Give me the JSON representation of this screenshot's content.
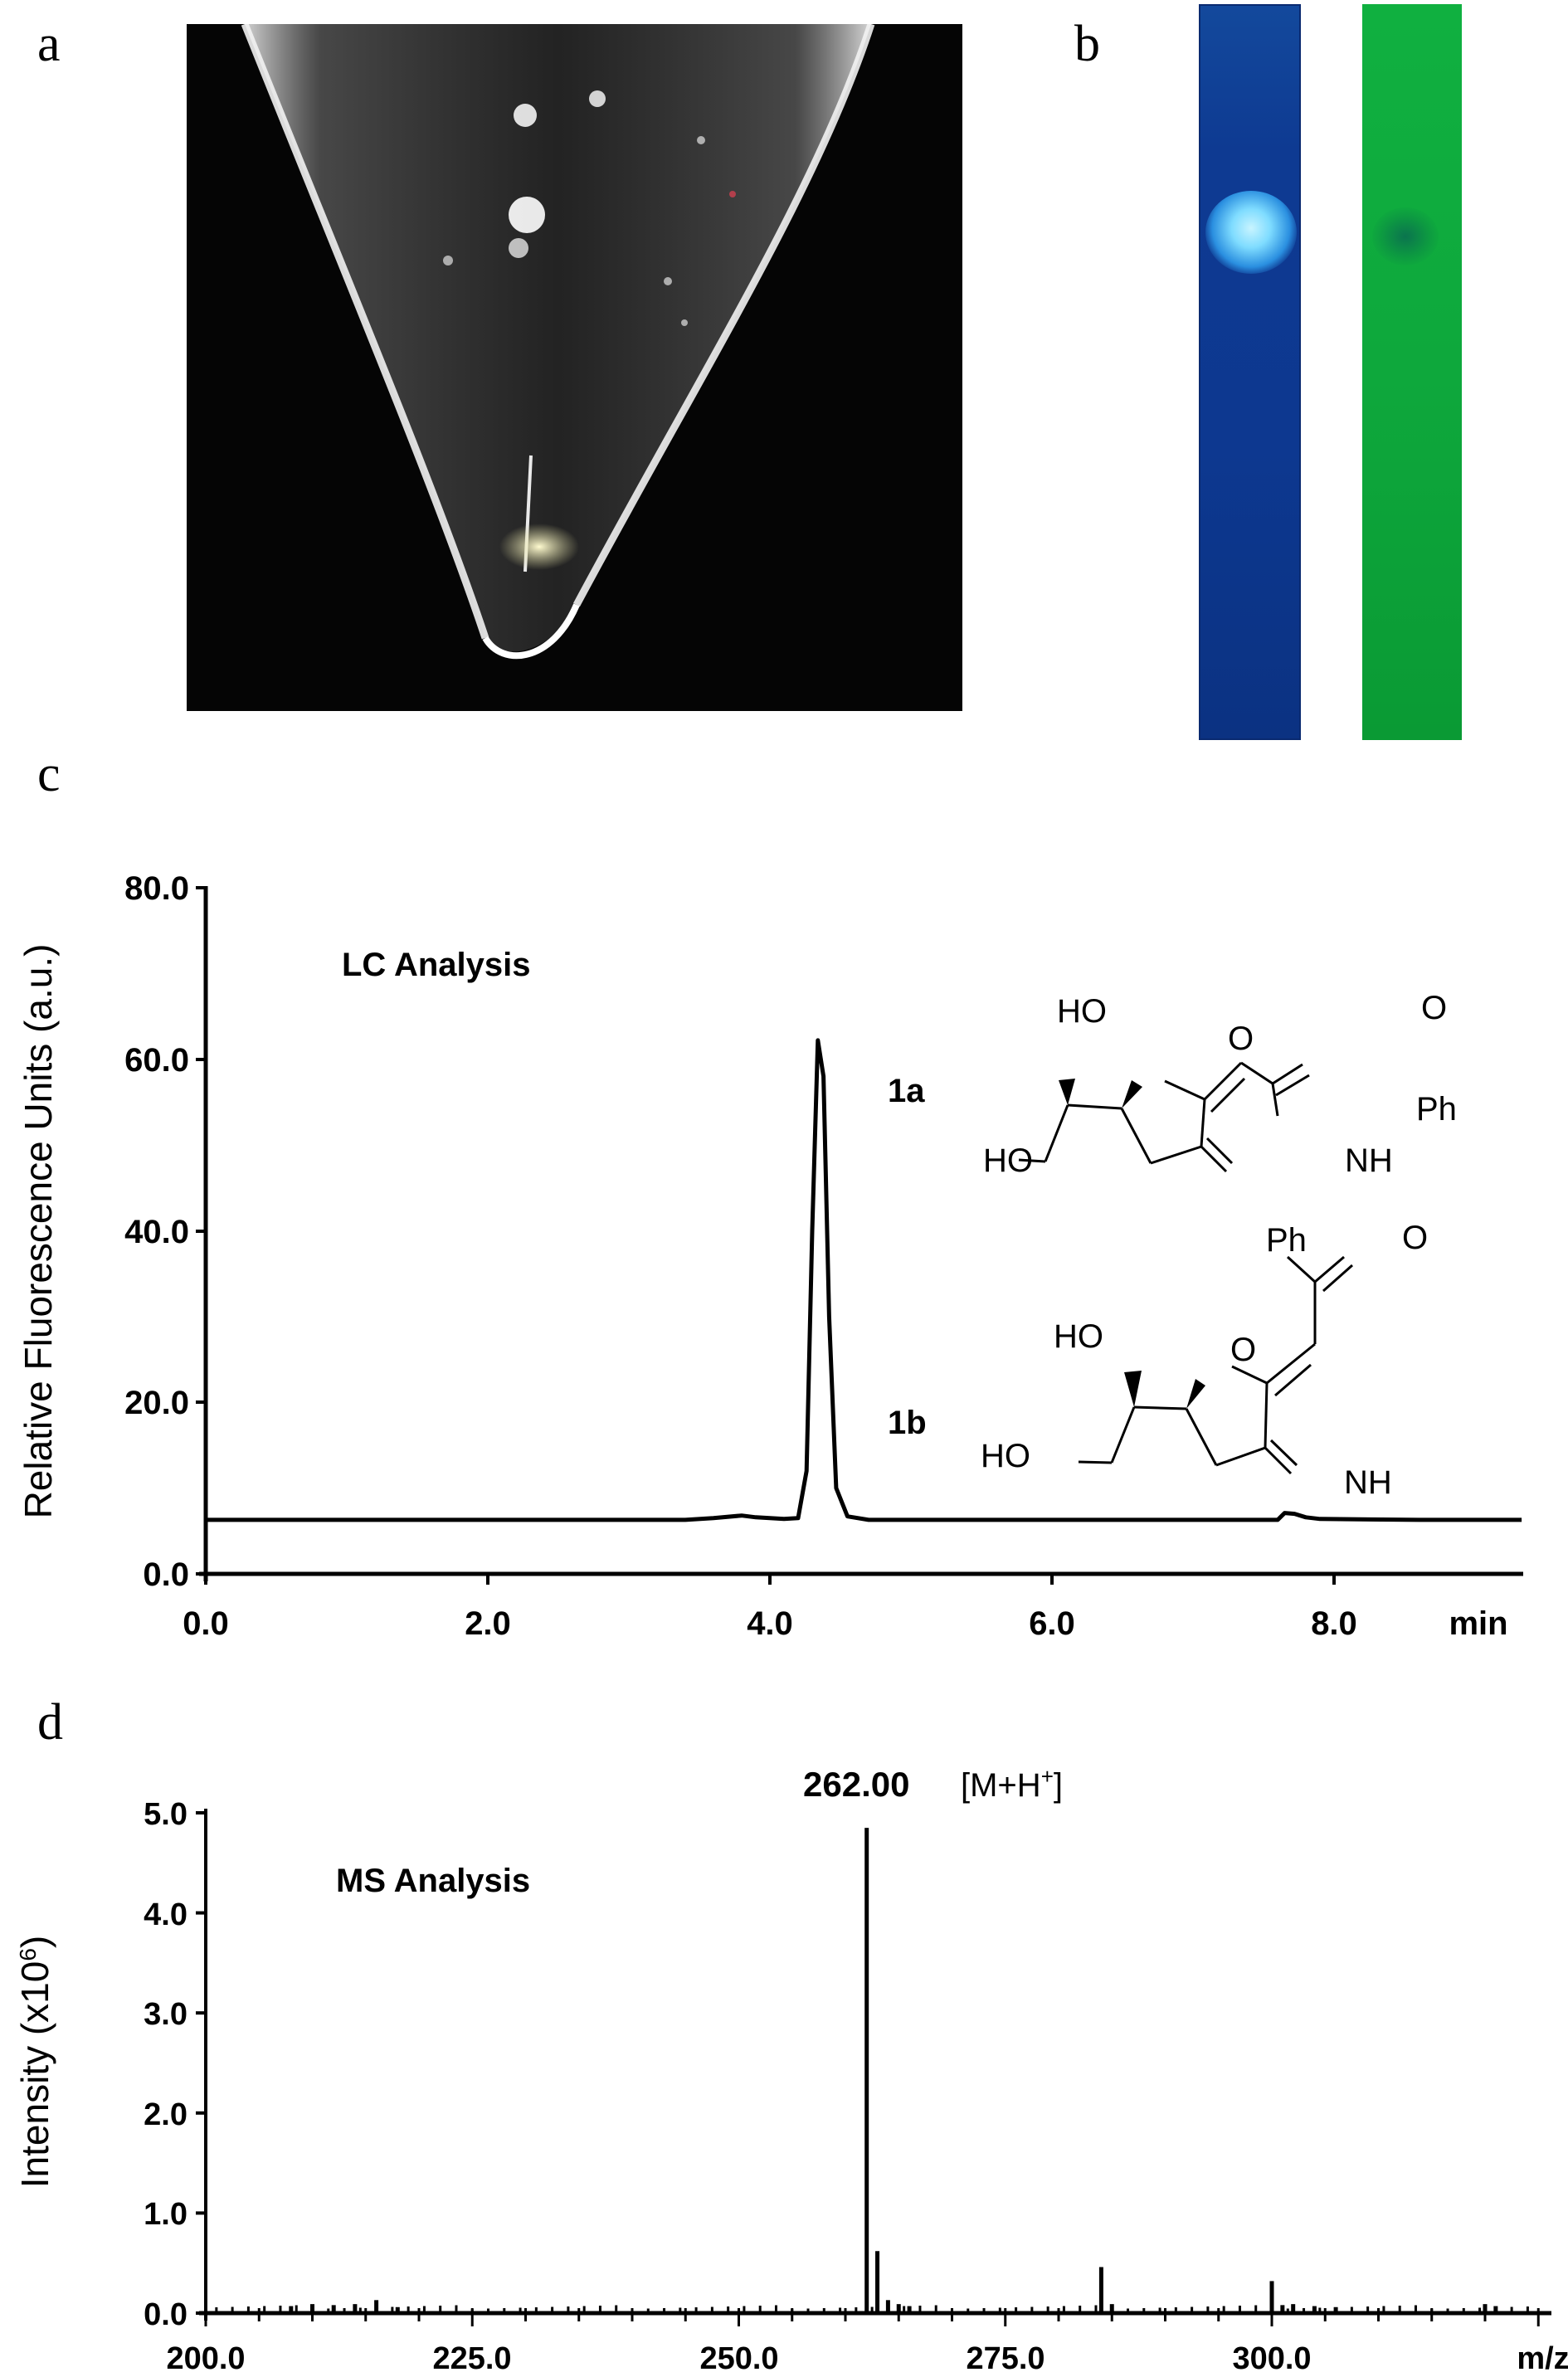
{
  "panels": {
    "a": {
      "label": "a",
      "description": "Conical vial with pale yellow precipitate"
    },
    "b": {
      "label": "b",
      "strips": [
        {
          "name": "uv365",
          "color": "#0a3a9a",
          "spot_color": "#8fe6ff"
        },
        {
          "name": "uv254",
          "color": "#12b03c",
          "spot_color": "#0f8a4a"
        }
      ]
    },
    "c": {
      "label": "c",
      "annotation": "LC Analysis",
      "compound_labels": [
        "1a",
        "1b"
      ]
    },
    "d": {
      "label": "d",
      "annotation": "MS Analysis",
      "peak_label_value": "262.00",
      "peak_label_ion": "[M+H",
      "peak_label_sup": "+",
      "peak_label_close": "]"
    }
  },
  "structures": {
    "atoms": {
      "ho": "HO",
      "o": "O",
      "ph": "Ph",
      "nh": "NH"
    }
  },
  "chart_data": [
    {
      "id": "c",
      "type": "line",
      "title": "LC Analysis",
      "xlabel": "min",
      "ylabel": "Relative Fluorescence Units (a.u.)",
      "xlim": [
        0.0,
        9.33
      ],
      "ylim": [
        0.0,
        80.0
      ],
      "xticks": [
        "0.0",
        "2.0",
        "4.0",
        "6.0",
        "8.0"
      ],
      "yticks": [
        "0.0",
        "20.0",
        "40.0",
        "60.0",
        "80.0"
      ],
      "grid": false,
      "legend": null,
      "series": [
        {
          "name": "fluorescence",
          "x": [
            0.0,
            3.4,
            3.6,
            3.8,
            3.9,
            4.1,
            4.2,
            4.26,
            4.3,
            4.34,
            4.38,
            4.42,
            4.47,
            4.55,
            4.7,
            6.0,
            7.6,
            7.65,
            7.72,
            7.8,
            7.9,
            8.6,
            9.33
          ],
          "y": [
            6.3,
            6.3,
            6.5,
            6.8,
            6.6,
            6.4,
            6.5,
            12.0,
            40.0,
            62.2,
            58.0,
            30.0,
            10.0,
            6.7,
            6.3,
            6.3,
            6.3,
            7.1,
            7.0,
            6.6,
            6.4,
            6.3,
            6.3
          ]
        }
      ],
      "annotations": [
        {
          "text": "LC Analysis"
        },
        {
          "text": "1a"
        },
        {
          "text": "1b"
        }
      ]
    },
    {
      "id": "d",
      "type": "bar",
      "title": "MS Analysis",
      "xlabel": "m/z",
      "ylabel": "Intensity (x10^6)",
      "xlim": [
        200.0,
        326.0
      ],
      "ylim": [
        0.0,
        5.0
      ],
      "xticks": [
        "200.0",
        "225.0",
        "250.0",
        "275.0",
        "300.0"
      ],
      "yticks": [
        "0.0",
        "1.0",
        "2.0",
        "3.0",
        "4.0",
        "5.0"
      ],
      "grid": false,
      "series": [
        {
          "name": "intensity",
          "x": [
            208,
            210,
            212,
            214,
            216,
            218,
            262,
            263,
            264,
            265,
            266,
            284,
            285,
            300,
            301,
            302,
            304,
            306,
            320,
            321
          ],
          "y": [
            0.07,
            0.09,
            0.08,
            0.09,
            0.13,
            0.06,
            4.85,
            0.62,
            0.13,
            0.09,
            0.07,
            0.46,
            0.09,
            0.32,
            0.08,
            0.09,
            0.07,
            0.06,
            0.09,
            0.07
          ]
        }
      ],
      "annotations": [
        {
          "text": "262.00 [M+H+]",
          "x": 262,
          "y": 4.85
        },
        {
          "text": "MS Analysis"
        }
      ]
    }
  ]
}
